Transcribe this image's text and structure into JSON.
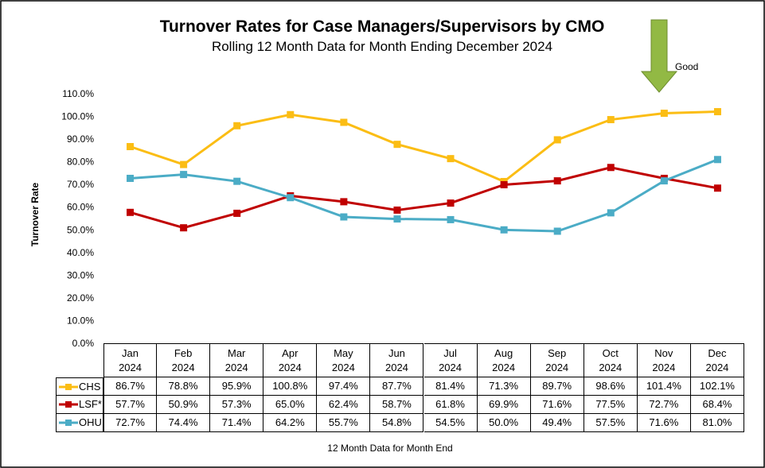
{
  "chart_data": {
    "type": "line",
    "title": "Turnover Rates for Case Managers/Supervisors by CMO",
    "subtitle": "Rolling 12 Month Data for Month Ending December 2024",
    "y_label": "Turnover Rate",
    "x_label": "12 Month Data for Month End",
    "annotation": "Good",
    "categories": [
      "Jan\n2024",
      "Feb\n2024",
      "Mar\n2024",
      "Apr\n2024",
      "May\n2024",
      "Jun\n2024",
      "Jul\n2024",
      "Aug\n2024",
      "Sep\n2024",
      "Oct\n2024",
      "Nov\n2024",
      "Dec\n2024"
    ],
    "ylim": [
      0,
      110
    ],
    "yticks": [
      {
        "value": 0,
        "label": "0.0%"
      },
      {
        "value": 10,
        "label": "10.0%"
      },
      {
        "value": 20,
        "label": "20.0%"
      },
      {
        "value": 30,
        "label": "30.0%"
      },
      {
        "value": 40,
        "label": "40.0%"
      },
      {
        "value": 50,
        "label": "50.0%"
      },
      {
        "value": 60,
        "label": "60.0%"
      },
      {
        "value": 70,
        "label": "70.0%"
      },
      {
        "value": 80,
        "label": "80.0%"
      },
      {
        "value": 90,
        "label": "90.0%"
      },
      {
        "value": 100,
        "label": "100.0%"
      },
      {
        "value": 110,
        "label": "110.0%"
      }
    ],
    "grid": false,
    "series": [
      {
        "name": "CHS",
        "color": "#fbbd14",
        "values": [
          86.7,
          78.8,
          95.9,
          100.8,
          97.4,
          87.7,
          81.4,
          71.3,
          89.7,
          98.6,
          101.4,
          102.1
        ],
        "value_labels": [
          "86.7%",
          "78.8%",
          "95.9%",
          "100.8%",
          "97.4%",
          "87.7%",
          "81.4%",
          "71.3%",
          "89.7%",
          "98.6%",
          "101.4%",
          "102.1%"
        ]
      },
      {
        "name": "LSF*",
        "color": "#c00000",
        "values": [
          57.7,
          50.9,
          57.3,
          65.0,
          62.4,
          58.7,
          61.8,
          69.9,
          71.6,
          77.5,
          72.7,
          68.4
        ],
        "value_labels": [
          "57.7%",
          "50.9%",
          "57.3%",
          "65.0%",
          "62.4%",
          "58.7%",
          "61.8%",
          "69.9%",
          "71.6%",
          "77.5%",
          "72.7%",
          "68.4%"
        ]
      },
      {
        "name": "OHU",
        "color": "#4bacc6",
        "values": [
          72.7,
          74.4,
          71.4,
          64.2,
          55.7,
          54.8,
          54.5,
          50.0,
          49.4,
          57.5,
          71.6,
          81.0
        ],
        "value_labels": [
          "72.7%",
          "74.4%",
          "71.4%",
          "64.2%",
          "55.7%",
          "54.8%",
          "54.5%",
          "50.0%",
          "49.4%",
          "57.5%",
          "71.6%",
          "81.0%"
        ]
      }
    ]
  }
}
